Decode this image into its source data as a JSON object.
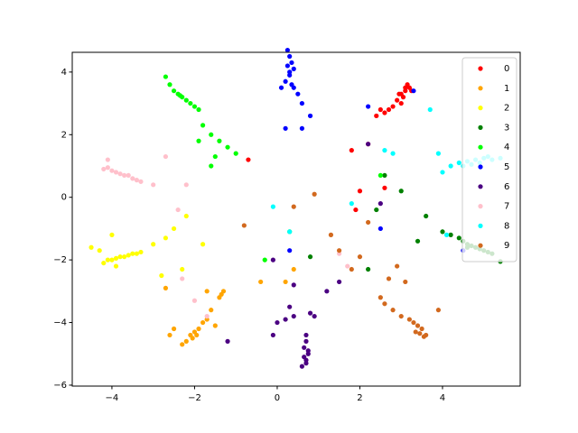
{
  "chart_data": {
    "type": "scatter",
    "legend": "upper right",
    "xlim": [
      -4.96,
      5.88
    ],
    "ylim": [
      -6.03,
      4.63
    ],
    "xticks": [
      {
        "value": -4,
        "label": "−4"
      },
      {
        "value": -2,
        "label": "−2"
      },
      0,
      2,
      4
    ],
    "yticks": [
      {
        "value": -6,
        "label": "−6"
      },
      {
        "value": -4,
        "label": "−4"
      },
      {
        "value": -2,
        "label": "−2"
      },
      0,
      2,
      4
    ],
    "series": [
      {
        "name": "0",
        "color": "#ff0000",
        "x": [
          3.0,
          3.1,
          3.2,
          3.05,
          2.9,
          3.15,
          3.25,
          2.95,
          3.1,
          3.0,
          2.8,
          2.7,
          2.5,
          2.4,
          2.6,
          2.2,
          1.8,
          2.0,
          -0.7,
          1.9,
          2.6
        ],
        "y": [
          3.3,
          3.4,
          3.5,
          3.2,
          3.1,
          3.6,
          3.4,
          3.3,
          3.5,
          3.0,
          2.9,
          2.8,
          2.8,
          2.6,
          2.7,
          1.7,
          1.5,
          0.2,
          1.2,
          -0.4,
          0.3
        ]
      },
      {
        "name": "1",
        "color": "#ffa500",
        "x": [
          -2.1,
          -2.0,
          -1.9,
          -2.2,
          -1.95,
          -2.05,
          -1.8,
          -1.7,
          -1.6,
          -1.4,
          -1.3,
          -1.35,
          -1.5,
          -2.5,
          -2.6,
          -1.7,
          -2.3,
          -2.7,
          -0.4,
          0.2,
          0.4
        ],
        "y": [
          -4.4,
          -4.3,
          -4.2,
          -4.6,
          -4.4,
          -4.5,
          -4.0,
          -3.9,
          -3.6,
          -3.2,
          -3.0,
          -3.1,
          -4.1,
          -4.2,
          -4.4,
          -3.0,
          -4.7,
          -2.9,
          -2.7,
          -2.7,
          -2.3
        ]
      },
      {
        "name": "2",
        "color": "#ffff00",
        "x": [
          -4.2,
          -4.1,
          -4.0,
          -3.9,
          -3.8,
          -3.7,
          -3.6,
          -3.5,
          -3.4,
          -3.3,
          -3.9,
          -4.5,
          -4.3,
          -4.0,
          -3.0,
          -2.7,
          -2.5,
          -2.2,
          -1.8,
          -2.8,
          -2.3
        ],
        "y": [
          -2.1,
          -2.0,
          -2.0,
          -1.95,
          -1.9,
          -1.9,
          -1.85,
          -1.8,
          -1.8,
          -1.75,
          -2.2,
          -1.6,
          -1.7,
          -1.2,
          -1.5,
          -1.3,
          -1.0,
          -0.6,
          -1.5,
          -2.5,
          -2.3
        ]
      },
      {
        "name": "3",
        "color": "#008000",
        "x": [
          4.5,
          4.6,
          4.7,
          4.8,
          4.9,
          5.0,
          5.1,
          5.2,
          4.4,
          4.2,
          4.0,
          3.6,
          3.0,
          3.4,
          5.4,
          2.6,
          2.4,
          0.8,
          2.2,
          4.6
        ],
        "y": [
          -1.4,
          -1.5,
          -1.55,
          -1.6,
          -1.65,
          -1.7,
          -1.75,
          -1.8,
          -1.3,
          -1.2,
          -1.1,
          -0.6,
          0.2,
          -1.4,
          -2.05,
          0.7,
          -0.4,
          -1.9,
          -2.3,
          -1.6
        ]
      },
      {
        "name": "4",
        "color": "#00ff00",
        "x": [
          -2.7,
          -2.6,
          -2.5,
          -2.4,
          -2.3,
          -2.2,
          -2.1,
          -2.0,
          -1.9,
          -2.35,
          -1.8,
          -1.6,
          -1.4,
          -1.2,
          -1.0,
          -1.6,
          -1.9,
          -1.5,
          0.3,
          2.5,
          -0.3
        ],
        "y": [
          3.85,
          3.6,
          3.4,
          3.3,
          3.2,
          3.1,
          3.0,
          2.9,
          2.8,
          3.25,
          2.3,
          2.0,
          1.8,
          1.6,
          1.4,
          1.0,
          1.8,
          1.3,
          -1.1,
          0.7,
          -2.0
        ]
      },
      {
        "name": "5",
        "color": "#0000ff",
        "x": [
          0.25,
          0.3,
          0.35,
          0.4,
          0.3,
          0.2,
          0.35,
          0.4,
          0.3,
          0.25,
          0.1,
          0.5,
          0.6,
          0.8,
          0.6,
          0.2,
          2.2,
          3.3,
          2.5,
          4.5,
          0.3
        ],
        "y": [
          4.7,
          4.5,
          4.3,
          4.1,
          3.9,
          3.7,
          3.6,
          3.5,
          4.0,
          4.2,
          3.5,
          3.3,
          3.0,
          2.6,
          2.2,
          2.2,
          2.9,
          3.4,
          -1.0,
          -1.7,
          -1.7
        ]
      },
      {
        "name": "6",
        "color": "#4b0082",
        "x": [
          0.7,
          0.65,
          0.75,
          0.7,
          0.6,
          0.7,
          0.75,
          0.65,
          0.7,
          0.4,
          0.2,
          0.0,
          0.3,
          0.8,
          0.9,
          1.2,
          -0.1,
          -0.1,
          0.4,
          -1.2,
          2.2,
          2.5,
          1.5
        ],
        "y": [
          -4.6,
          -4.8,
          -5.0,
          -5.2,
          -5.4,
          -4.4,
          -4.9,
          -5.1,
          -5.3,
          -3.8,
          -3.9,
          -4.0,
          -3.5,
          -3.7,
          -3.8,
          -3.0,
          -4.4,
          -2.0,
          -2.8,
          -4.6,
          1.7,
          -0.2,
          -2.7
        ]
      },
      {
        "name": "7",
        "color": "#ffc0cb",
        "x": [
          -4.2,
          -4.1,
          -4.0,
          -3.9,
          -3.8,
          -3.7,
          -3.6,
          -3.5,
          -3.4,
          -4.1,
          -3.3,
          -3.0,
          -2.7,
          -2.2,
          -2.4,
          -2.0,
          -1.7,
          -2.3,
          1.5,
          1.7
        ],
        "y": [
          0.9,
          0.95,
          0.85,
          0.8,
          0.75,
          0.7,
          0.7,
          0.6,
          0.55,
          1.2,
          0.5,
          0.4,
          1.3,
          0.4,
          -0.4,
          -3.3,
          -3.8,
          -2.6,
          -1.8,
          -2.2
        ]
      },
      {
        "name": "8",
        "color": "#00ffff",
        "x": [
          4.2,
          4.4,
          4.6,
          4.8,
          5.0,
          5.2,
          5.4,
          4.5,
          4.7,
          4.9,
          5.1,
          4.0,
          3.7,
          3.9,
          2.6,
          2.8,
          1.8,
          -0.1,
          0.3,
          4.1
        ],
        "y": [
          1.0,
          1.1,
          1.15,
          1.2,
          1.25,
          1.2,
          1.25,
          1.0,
          1.05,
          1.1,
          1.3,
          0.8,
          2.8,
          1.4,
          1.5,
          1.4,
          -0.2,
          -0.3,
          -1.1,
          -1.2
        ]
      },
      {
        "name": "9",
        "color": "#d2691e",
        "x": [
          3.2,
          3.3,
          3.4,
          3.5,
          3.6,
          3.35,
          3.45,
          3.55,
          3.0,
          2.8,
          2.6,
          2.5,
          2.7,
          2.9,
          3.1,
          3.9,
          2.0,
          1.8,
          1.5,
          1.3,
          0.9,
          0.4,
          -0.8,
          2.2
        ],
        "y": [
          -3.9,
          -4.0,
          -4.1,
          -4.2,
          -4.4,
          -4.3,
          -4.35,
          -4.45,
          -3.8,
          -3.6,
          -3.4,
          -3.2,
          -2.6,
          -2.2,
          -2.7,
          -3.6,
          -1.9,
          -2.3,
          -1.7,
          -1.2,
          0.1,
          -0.3,
          -0.9,
          -0.8
        ]
      }
    ]
  }
}
